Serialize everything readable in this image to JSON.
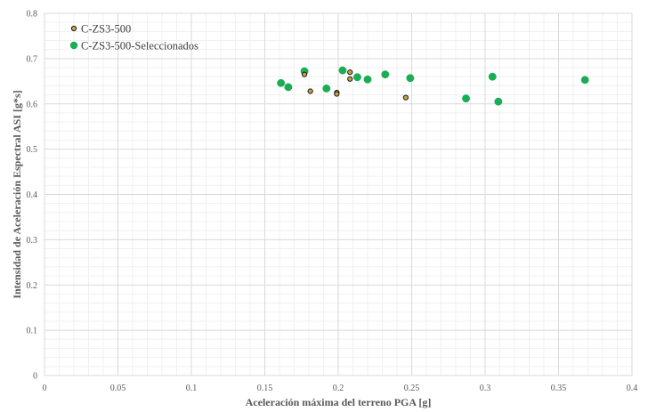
{
  "chart_data": {
    "type": "scatter",
    "xlabel": "Aceleración máxima del terreno PGA [g]",
    "ylabel": "Intensidad de Aceleración Espectral ASI [g*s]",
    "xlim": [
      0,
      0.4
    ],
    "ylim": [
      0,
      0.8
    ],
    "x_ticks": [
      "0",
      "0.05",
      "0.1",
      "0.15",
      "0.2",
      "0.25",
      "0.3",
      "0.35",
      "0.4"
    ],
    "y_ticks": [
      "0",
      "0.1",
      "0.2",
      "0.3",
      "0.4",
      "0.5",
      "0.6",
      "0.7",
      "0.8"
    ],
    "grid": true,
    "minor_grid": true,
    "legend_position": "top-left",
    "series": [
      {
        "name": "C-ZS3-500",
        "color": "#6b5a2a",
        "marker": "small-circle",
        "points": [
          {
            "x": 0.177,
            "y": 0.665
          },
          {
            "x": 0.181,
            "y": 0.628
          },
          {
            "x": 0.199,
            "y": 0.625
          },
          {
            "x": 0.199,
            "y": 0.622
          },
          {
            "x": 0.208,
            "y": 0.67
          },
          {
            "x": 0.208,
            "y": 0.655
          },
          {
            "x": 0.246,
            "y": 0.614
          }
        ]
      },
      {
        "name": "C-ZS3-500-Seleccionados",
        "color": "#1aad55",
        "marker": "circle",
        "points": [
          {
            "x": 0.161,
            "y": 0.646
          },
          {
            "x": 0.166,
            "y": 0.637
          },
          {
            "x": 0.177,
            "y": 0.672
          },
          {
            "x": 0.192,
            "y": 0.634
          },
          {
            "x": 0.203,
            "y": 0.674
          },
          {
            "x": 0.213,
            "y": 0.659
          },
          {
            "x": 0.22,
            "y": 0.654
          },
          {
            "x": 0.232,
            "y": 0.665
          },
          {
            "x": 0.249,
            "y": 0.657
          },
          {
            "x": 0.287,
            "y": 0.612
          },
          {
            "x": 0.305,
            "y": 0.66
          },
          {
            "x": 0.309,
            "y": 0.605
          },
          {
            "x": 0.368,
            "y": 0.653
          }
        ]
      }
    ]
  }
}
